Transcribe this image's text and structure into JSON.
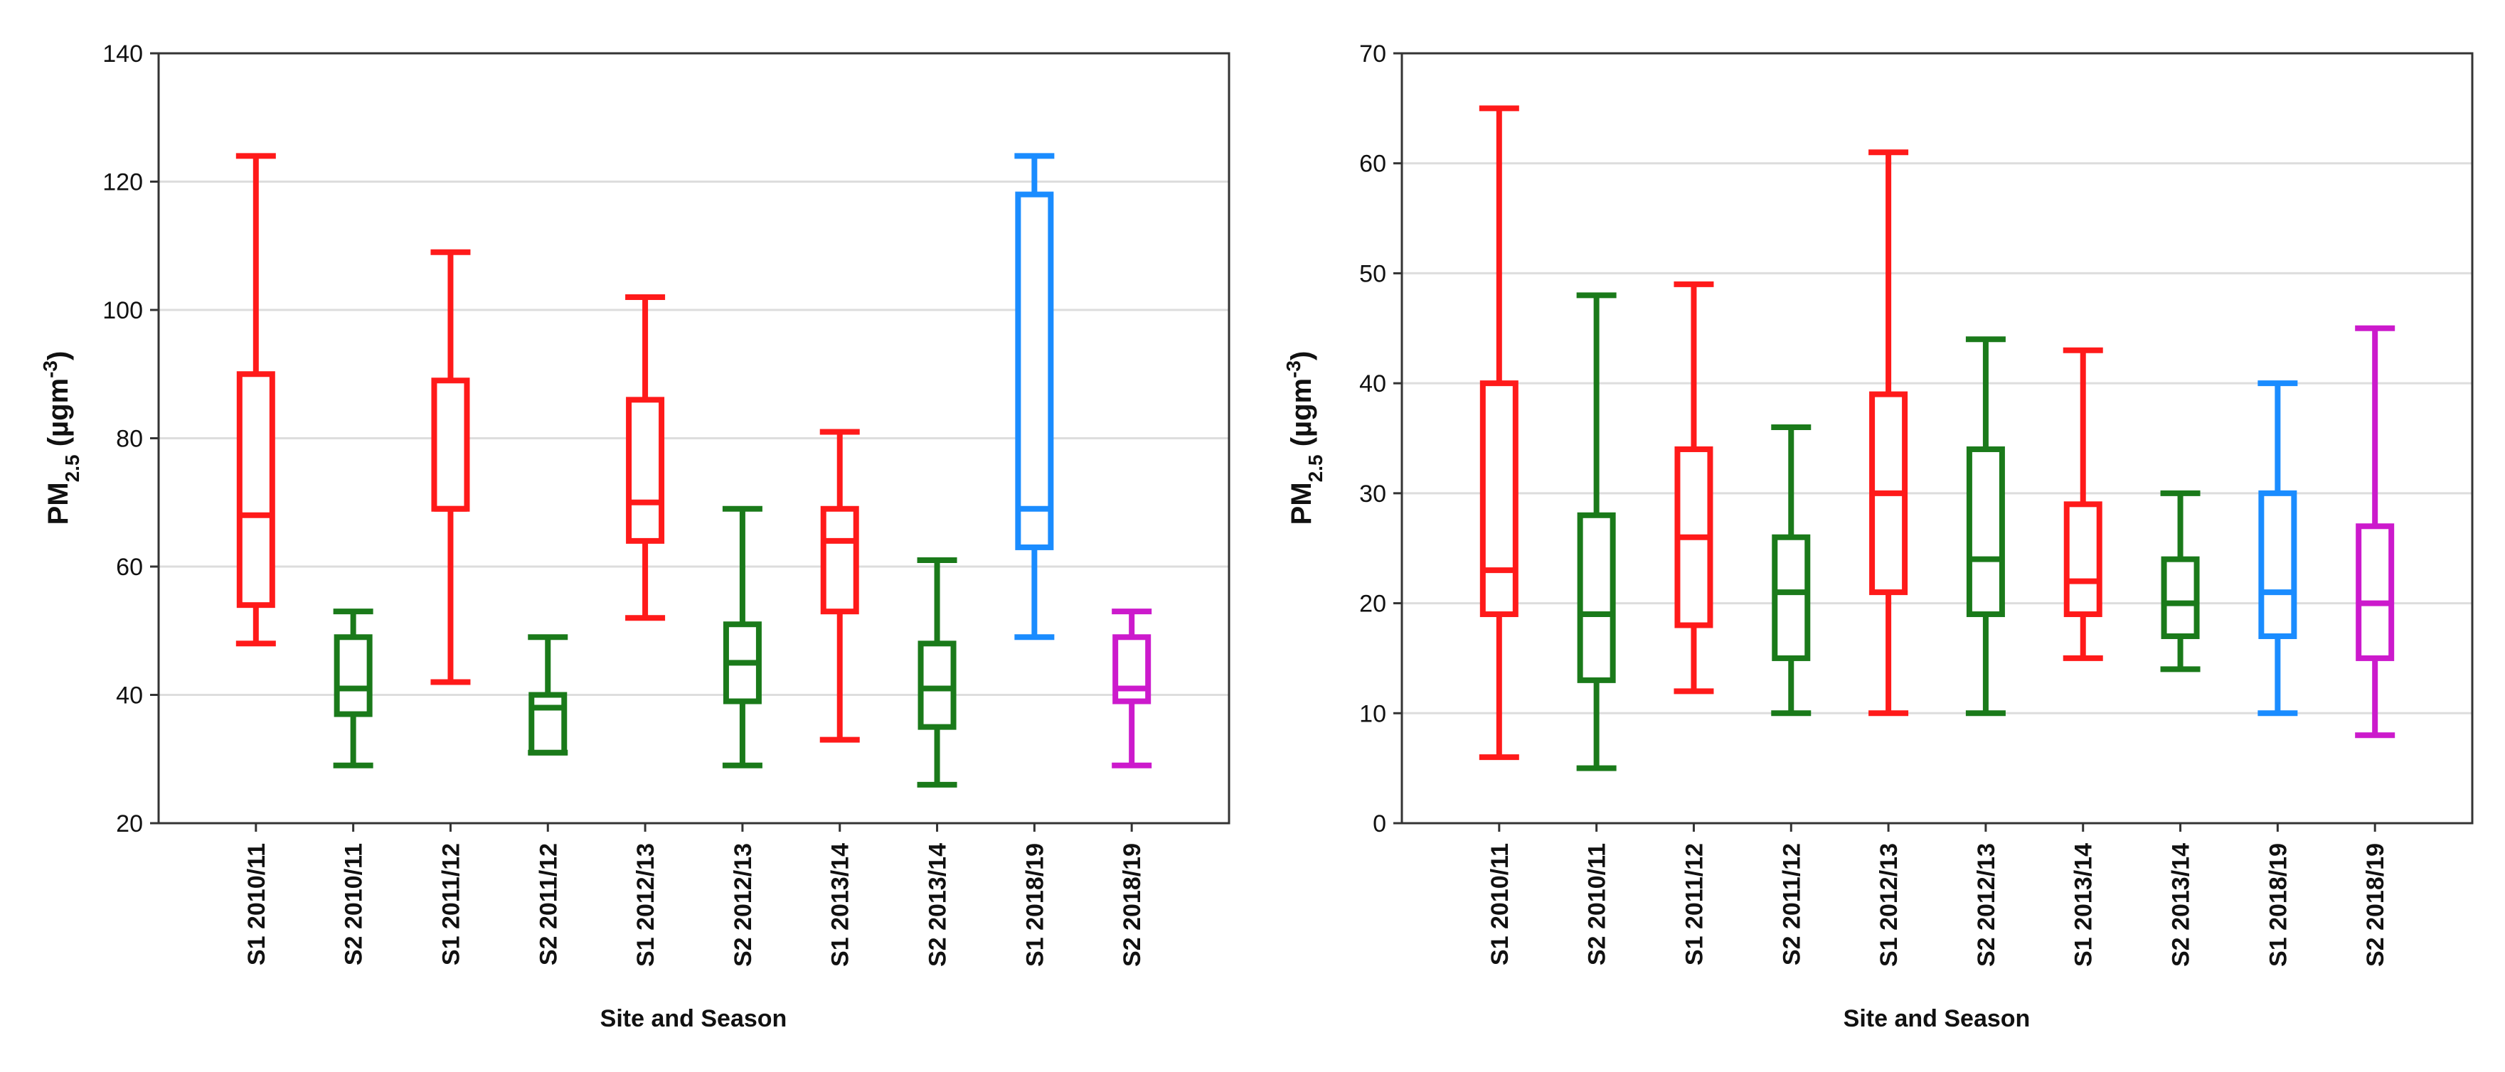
{
  "chart_data": [
    {
      "type": "box",
      "title": "",
      "xlabel": "Site and Season",
      "ylabel": {
        "main": "PM",
        "sub": "2.5",
        "open": " (µgm",
        "sup": "-3",
        "close": ")"
      },
      "ylim": [
        20,
        140
      ],
      "yticks": [
        "20",
        "40",
        "60",
        "80",
        "100",
        "120",
        "140"
      ],
      "grid": true,
      "categories": [
        "S1 2010/11",
        "S2 2010/11",
        "S1 2011/12",
        "S2 2011/12",
        "S1 2012/13",
        "S2 2012/13",
        "S1 2013/14",
        "S2 2013/14",
        "S1 2018/19",
        "S2 2018/19"
      ],
      "boxes": [
        {
          "min": 48,
          "q1": 54,
          "median": 68,
          "q3": 90,
          "max": 124,
          "color": "#ff1a1a"
        },
        {
          "min": 29,
          "q1": 37,
          "median": 41,
          "q3": 49,
          "max": 53,
          "color": "#1a7a1a"
        },
        {
          "min": 42,
          "q1": 69,
          "median": 69,
          "q3": 89,
          "max": 109,
          "color": "#ff1a1a"
        },
        {
          "min": 31,
          "q1": 31,
          "median": 38,
          "q3": 40,
          "max": 49,
          "color": "#1a7a1a"
        },
        {
          "min": 52,
          "q1": 64,
          "median": 70,
          "q3": 86,
          "max": 102,
          "color": "#ff1a1a"
        },
        {
          "min": 29,
          "q1": 39,
          "median": 45,
          "q3": 51,
          "max": 69,
          "color": "#1a7a1a"
        },
        {
          "min": 33,
          "q1": 53,
          "median": 64,
          "q3": 69,
          "max": 81,
          "color": "#ff1a1a"
        },
        {
          "min": 26,
          "q1": 35,
          "median": 41,
          "q3": 48,
          "max": 61,
          "color": "#1a7a1a"
        },
        {
          "min": 49,
          "q1": 63,
          "median": 69,
          "q3": 118,
          "max": 124,
          "color": "#1a8cff"
        },
        {
          "min": 29,
          "q1": 39,
          "median": 41,
          "q3": 49,
          "max": 53,
          "color": "#cc1acc"
        }
      ]
    },
    {
      "type": "box",
      "title": "",
      "xlabel": "Site and Season",
      "ylabel": {
        "main": "PM",
        "sub": "2.5",
        "open": " (µgm",
        "sup": "-3",
        "close": ")"
      },
      "ylim": [
        0,
        70
      ],
      "yticks": [
        "0",
        "10",
        "20",
        "30",
        "40",
        "50",
        "60",
        "70"
      ],
      "grid": true,
      "categories": [
        "S1 2010/11",
        "S2 2010/11",
        "S1 2011/12",
        "S2 2011/12",
        "S1 2012/13",
        "S2 2012/13",
        "S1 2013/14",
        "S2 2013/14",
        "S1 2018/19",
        "S2 2018/19"
      ],
      "boxes": [
        {
          "min": 6,
          "q1": 19,
          "median": 23,
          "q3": 40,
          "max": 65,
          "color": "#ff1a1a"
        },
        {
          "min": 5,
          "q1": 13,
          "median": 19,
          "q3": 28,
          "max": 48,
          "color": "#1a7a1a"
        },
        {
          "min": 12,
          "q1": 18,
          "median": 26,
          "q3": 34,
          "max": 49,
          "color": "#ff1a1a"
        },
        {
          "min": 10,
          "q1": 15,
          "median": 21,
          "q3": 26,
          "max": 36,
          "color": "#1a7a1a"
        },
        {
          "min": 10,
          "q1": 21,
          "median": 30,
          "q3": 39,
          "max": 61,
          "color": "#ff1a1a"
        },
        {
          "min": 10,
          "q1": 19,
          "median": 24,
          "q3": 34,
          "max": 44,
          "color": "#1a7a1a"
        },
        {
          "min": 15,
          "q1": 19,
          "median": 22,
          "q3": 29,
          "max": 43,
          "color": "#ff1a1a"
        },
        {
          "min": 14,
          "q1": 17,
          "median": 20,
          "q3": 24,
          "max": 30,
          "color": "#1a7a1a"
        },
        {
          "min": 10,
          "q1": 17,
          "median": 21,
          "q3": 30,
          "max": 40,
          "color": "#1a8cff"
        },
        {
          "min": 8,
          "q1": 15,
          "median": 20,
          "q3": 27,
          "max": 45,
          "color": "#cc1acc"
        }
      ]
    }
  ]
}
